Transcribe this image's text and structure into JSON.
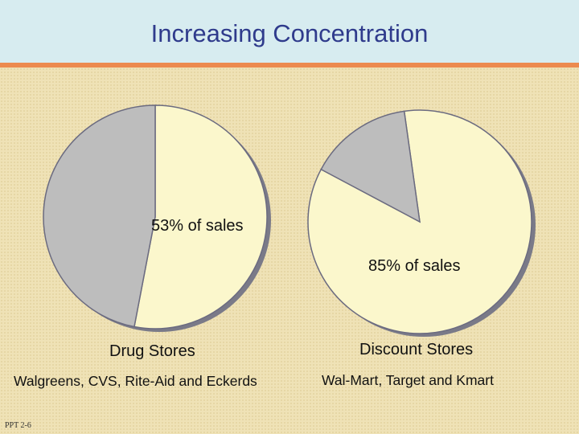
{
  "slide": {
    "title": "Increasing Concentration",
    "footer": "PPT 2-6"
  },
  "colors": {
    "title_bg": "#d7ecf0",
    "title_rule": "#ec8a4e",
    "title_text": "#2f3b8c",
    "share_fill": "#fbf7cc",
    "rest_fill": "#bdbdbd",
    "edge": "#6b6b80",
    "background": "#efe2b6"
  },
  "chart_data": [
    {
      "type": "pie",
      "name": "Drug Stores",
      "subtitle": "Walgreens, CVS, Rite-Aid and Eckerds",
      "label": "53% of sales",
      "slices": [
        {
          "value": 53,
          "color": "#fbf7cc"
        },
        {
          "value": 47,
          "color": "#bdbdbd"
        }
      ]
    },
    {
      "type": "pie",
      "name": "Discount Stores",
      "subtitle": "Wal-Mart, Target and Kmart",
      "label": "85% of sales",
      "slices": [
        {
          "value": 85,
          "color": "#fbf7cc"
        },
        {
          "value": 15,
          "color": "#bdbdbd"
        }
      ]
    }
  ]
}
